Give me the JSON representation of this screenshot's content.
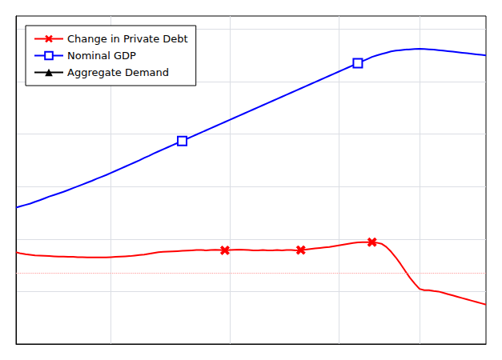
{
  "chart_data": {
    "type": "line",
    "legend": "upper left",
    "grid": true,
    "tick_labels": false,
    "xlim": [
      0,
      99
    ],
    "xticks": [
      20,
      45,
      68,
      85
    ],
    "ylim": [
      -2,
      10.5
    ],
    "yticks": [
      -2,
      0,
      2,
      4,
      6,
      8,
      10
    ],
    "x": [
      0,
      1,
      2,
      3,
      4,
      5,
      6,
      7,
      8,
      9,
      10,
      11,
      12,
      13,
      14,
      15,
      16,
      17,
      18,
      19,
      20,
      21,
      22,
      23,
      24,
      25,
      26,
      27,
      28,
      29,
      30,
      31,
      32,
      33,
      34,
      35,
      36,
      37,
      38,
      39,
      40,
      41,
      42,
      43,
      44,
      45,
      46,
      47,
      48,
      49,
      50,
      51,
      52,
      53,
      54,
      55,
      56,
      57,
      58,
      59,
      60,
      61,
      62,
      63,
      64,
      65,
      66,
      67,
      68,
      69,
      70,
      71,
      72,
      73,
      74,
      75,
      76,
      77,
      78,
      79,
      80,
      81,
      82,
      83,
      84,
      85,
      86,
      87,
      88,
      89,
      90,
      91,
      92,
      93,
      94,
      95,
      96,
      97,
      98,
      99
    ],
    "series": [
      {
        "name": "Change in Private Debt",
        "color": "#ff0000",
        "marker": "x",
        "marker_x": [
          44,
          60,
          75
        ],
        "values": [
          1.5,
          1.45,
          1.42,
          1.4,
          1.38,
          1.37,
          1.36,
          1.35,
          1.34,
          1.33,
          1.33,
          1.32,
          1.32,
          1.31,
          1.31,
          1.3,
          1.3,
          1.3,
          1.3,
          1.3,
          1.31,
          1.32,
          1.33,
          1.34,
          1.35,
          1.37,
          1.39,
          1.41,
          1.44,
          1.47,
          1.5,
          1.51,
          1.52,
          1.53,
          1.54,
          1.55,
          1.56,
          1.57,
          1.58,
          1.58,
          1.57,
          1.58,
          1.59,
          1.58,
          1.57,
          1.58,
          1.59,
          1.6,
          1.59,
          1.58,
          1.57,
          1.57,
          1.58,
          1.57,
          1.57,
          1.58,
          1.57,
          1.58,
          1.58,
          1.57,
          1.58,
          1.6,
          1.62,
          1.64,
          1.66,
          1.68,
          1.7,
          1.73,
          1.76,
          1.79,
          1.82,
          1.85,
          1.87,
          1.88,
          1.88,
          1.88,
          1.86,
          1.82,
          1.7,
          1.52,
          1.3,
          1.05,
          0.78,
          0.52,
          0.3,
          0.1,
          0.05,
          0.05,
          0.02,
          0.0,
          -0.05,
          -0.1,
          -0.15,
          -0.2,
          -0.25,
          -0.3,
          -0.35,
          -0.4,
          -0.45,
          -0.5
        ]
      },
      {
        "name": "Nominal GDP",
        "color": "#0000ff",
        "marker": "square",
        "marker_x": [
          35,
          72
        ],
        "values": [
          3.2,
          3.25,
          3.3,
          3.35,
          3.42,
          3.48,
          3.55,
          3.62,
          3.68,
          3.74,
          3.8,
          3.87,
          3.94,
          4.01,
          4.08,
          4.15,
          4.22,
          4.3,
          4.37,
          4.44,
          4.52,
          4.6,
          4.68,
          4.76,
          4.84,
          4.92,
          5.0,
          5.09,
          5.17,
          5.26,
          5.34,
          5.42,
          5.5,
          5.58,
          5.66,
          5.74,
          5.82,
          5.9,
          5.98,
          6.06,
          6.14,
          6.22,
          6.3,
          6.38,
          6.46,
          6.54,
          6.62,
          6.7,
          6.78,
          6.86,
          6.94,
          7.02,
          7.1,
          7.18,
          7.26,
          7.34,
          7.42,
          7.5,
          7.58,
          7.66,
          7.74,
          7.82,
          7.9,
          7.98,
          8.06,
          8.14,
          8.22,
          8.3,
          8.38,
          8.46,
          8.54,
          8.62,
          8.7,
          8.78,
          8.86,
          8.94,
          9.0,
          9.05,
          9.1,
          9.15,
          9.18,
          9.2,
          9.22,
          9.23,
          9.24,
          9.25,
          9.24,
          9.23,
          9.22,
          9.2,
          9.18,
          9.16,
          9.14,
          9.12,
          9.1,
          9.08,
          9.06,
          9.04,
          9.02,
          9.0
        ]
      },
      {
        "name": "Aggregate Demand",
        "color": "#000000",
        "marker": "triangle",
        "values": [
          null,
          null,
          null,
          null,
          null,
          null,
          null,
          null,
          null,
          null,
          null,
          null,
          null,
          null,
          null,
          null,
          null,
          null,
          null,
          null,
          null,
          null,
          null,
          null,
          null,
          null,
          null,
          null,
          null,
          null,
          null,
          null,
          null,
          null,
          null,
          null,
          null,
          null,
          null,
          null,
          null,
          null,
          null,
          null,
          null,
          null,
          null,
          null,
          null,
          null,
          null,
          null,
          null,
          null,
          null,
          null,
          null,
          null,
          null,
          null,
          null,
          null,
          null,
          null,
          null,
          null,
          null,
          null,
          null,
          null,
          null,
          null,
          null,
          null,
          null,
          null,
          null,
          null,
          null,
          null,
          null,
          null,
          null,
          null,
          null,
          null,
          null,
          null,
          null,
          null,
          null,
          null,
          null,
          null,
          null,
          null,
          null,
          null,
          null,
          null
        ]
      }
    ],
    "hlines": [
      {
        "y": 0.7,
        "color": "#ff9999",
        "line_style": "dotted"
      }
    ]
  }
}
